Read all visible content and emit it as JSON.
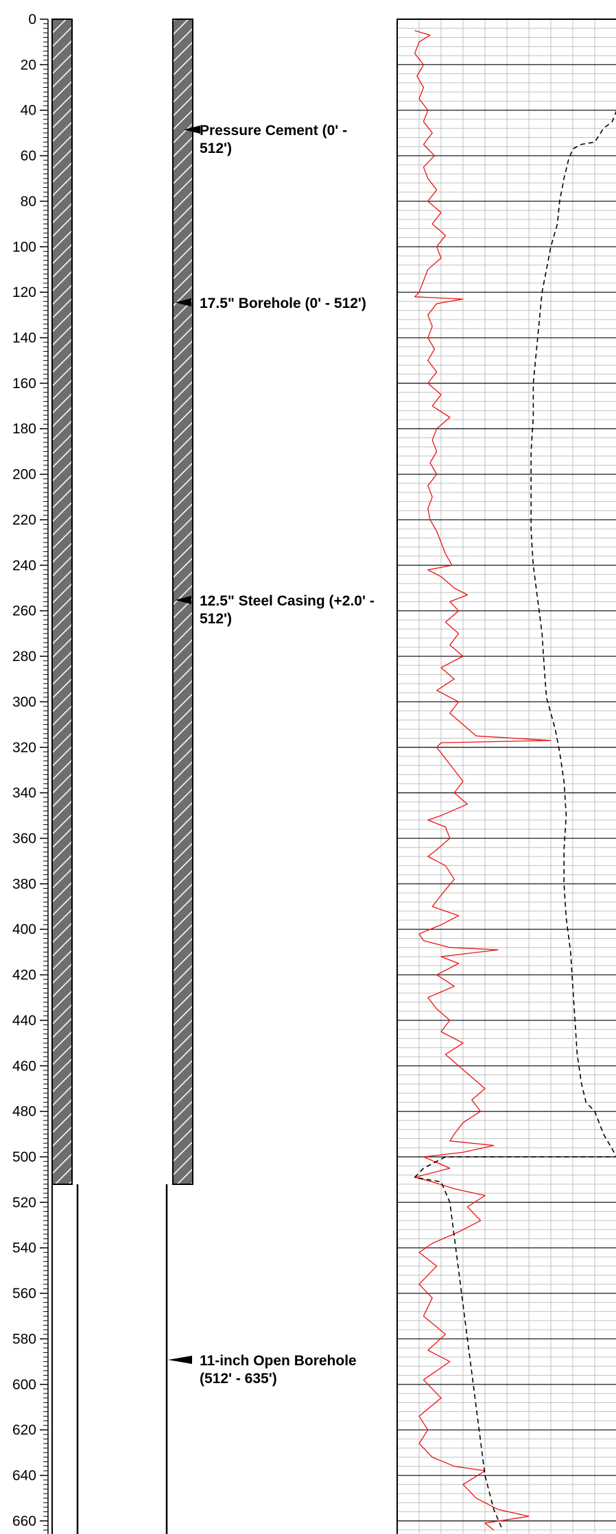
{
  "depth_axis": {
    "min": 0,
    "max": 665,
    "major_step": 20,
    "minor_step": 2,
    "labels": [
      "0",
      "20",
      "40",
      "60",
      "80",
      "100",
      "120",
      "140",
      "160",
      "180",
      "200",
      "220",
      "240",
      "260",
      "280",
      "300",
      "320",
      "340",
      "360",
      "380",
      "400",
      "420",
      "440",
      "460",
      "480",
      "500",
      "520",
      "540",
      "560",
      "580",
      "600",
      "620",
      "640",
      "660"
    ]
  },
  "well_construction": {
    "cased_interval": [
      0,
      512
    ],
    "open_interval": [
      512,
      665
    ],
    "annotations": [
      {
        "depth": 49,
        "lines": [
          "Pressure Cement (0' -",
          "512')"
        ]
      },
      {
        "depth": 125,
        "lines": [
          "17.5\" Borehole (0' - 512')"
        ]
      },
      {
        "depth": 255,
        "lines": [
          "12.5\" Steel Casing (+2.0' -",
          "512')"
        ]
      },
      {
        "depth": 589,
        "lines": [
          "11-inch Open Borehole",
          "(512' - 635')"
        ]
      }
    ]
  },
  "log_track": {
    "major_step": 20,
    "minor_step": 4,
    "vertical_lines": 9
  },
  "colors": {
    "red_curve": "#ee1111",
    "dashed_curve": "#000000",
    "cement": "#6e6e6e",
    "grid_minor": "#c0c0c0",
    "grid_major": "#303030"
  },
  "chart_data": {
    "type": "line",
    "ylim": [
      0,
      665
    ],
    "y_inverted": true,
    "xlim": [
      0,
      100
    ],
    "series": [
      {
        "style": "solid",
        "color": "#ee1111",
        "points": [
          [
            8,
            5
          ],
          [
            15,
            7
          ],
          [
            10,
            10
          ],
          [
            8,
            15
          ],
          [
            12,
            20
          ],
          [
            9,
            25
          ],
          [
            12,
            30
          ],
          [
            10,
            35
          ],
          [
            14,
            40
          ],
          [
            12,
            45
          ],
          [
            16,
            50
          ],
          [
            12,
            55
          ],
          [
            17,
            60
          ],
          [
            12,
            65
          ],
          [
            14,
            70
          ],
          [
            18,
            75
          ],
          [
            14,
            80
          ],
          [
            20,
            85
          ],
          [
            16,
            90
          ],
          [
            22,
            95
          ],
          [
            18,
            100
          ],
          [
            20,
            105
          ],
          [
            14,
            110
          ],
          [
            12,
            115
          ],
          [
            10,
            120
          ],
          [
            8,
            122
          ],
          [
            30,
            123
          ],
          [
            18,
            125
          ],
          [
            14,
            130
          ],
          [
            16,
            135
          ],
          [
            14,
            140
          ],
          [
            17,
            145
          ],
          [
            14,
            150
          ],
          [
            18,
            155
          ],
          [
            14,
            160
          ],
          [
            20,
            165
          ],
          [
            16,
            170
          ],
          [
            24,
            175
          ],
          [
            18,
            180
          ],
          [
            16,
            185
          ],
          [
            18,
            190
          ],
          [
            15,
            195
          ],
          [
            18,
            200
          ],
          [
            14,
            205
          ],
          [
            16,
            210
          ],
          [
            14,
            215
          ],
          [
            15,
            220
          ],
          [
            18,
            225
          ],
          [
            20,
            230
          ],
          [
            22,
            235
          ],
          [
            25,
            240
          ],
          [
            14,
            242
          ],
          [
            20,
            245
          ],
          [
            26,
            250
          ],
          [
            32,
            253
          ],
          [
            24,
            256
          ],
          [
            28,
            260
          ],
          [
            22,
            265
          ],
          [
            28,
            270
          ],
          [
            24,
            275
          ],
          [
            30,
            280
          ],
          [
            20,
            285
          ],
          [
            26,
            290
          ],
          [
            18,
            295
          ],
          [
            28,
            300
          ],
          [
            24,
            305
          ],
          [
            30,
            310
          ],
          [
            36,
            315
          ],
          [
            70,
            317
          ],
          [
            20,
            318
          ],
          [
            18,
            320
          ],
          [
            22,
            325
          ],
          [
            26,
            330
          ],
          [
            30,
            335
          ],
          [
            26,
            340
          ],
          [
            32,
            345
          ],
          [
            20,
            350
          ],
          [
            14,
            352
          ],
          [
            22,
            355
          ],
          [
            24,
            360
          ],
          [
            18,
            365
          ],
          [
            14,
            368
          ],
          [
            22,
            372
          ],
          [
            26,
            378
          ],
          [
            20,
            385
          ],
          [
            16,
            390
          ],
          [
            28,
            394
          ],
          [
            20,
            398
          ],
          [
            10,
            402
          ],
          [
            12,
            405
          ],
          [
            24,
            408
          ],
          [
            46,
            409
          ],
          [
            20,
            412
          ],
          [
            28,
            415
          ],
          [
            18,
            420
          ],
          [
            26,
            425
          ],
          [
            14,
            430
          ],
          [
            18,
            435
          ],
          [
            24,
            440
          ],
          [
            20,
            445
          ],
          [
            30,
            450
          ],
          [
            22,
            455
          ],
          [
            28,
            460
          ],
          [
            34,
            465
          ],
          [
            40,
            470
          ],
          [
            34,
            475
          ],
          [
            38,
            480
          ],
          [
            30,
            485
          ],
          [
            26,
            490
          ],
          [
            24,
            493
          ],
          [
            44,
            495
          ],
          [
            30,
            498
          ],
          [
            12,
            500
          ],
          [
            24,
            505
          ],
          [
            8,
            509
          ],
          [
            16,
            511
          ],
          [
            26,
            514
          ],
          [
            40,
            517
          ],
          [
            32,
            522
          ],
          [
            38,
            528
          ],
          [
            28,
            533
          ],
          [
            16,
            538
          ],
          [
            10,
            542
          ],
          [
            18,
            548
          ],
          [
            10,
            556
          ],
          [
            16,
            562
          ],
          [
            12,
            570
          ],
          [
            22,
            578
          ],
          [
            14,
            585
          ],
          [
            24,
            590
          ],
          [
            12,
            598
          ],
          [
            20,
            606
          ],
          [
            10,
            614
          ],
          [
            14,
            620
          ],
          [
            10,
            626
          ],
          [
            16,
            632
          ],
          [
            26,
            636
          ],
          [
            40,
            638
          ],
          [
            30,
            644
          ],
          [
            36,
            650
          ],
          [
            46,
            655
          ],
          [
            60,
            658
          ],
          [
            40,
            661
          ],
          [
            44,
            664
          ]
        ]
      },
      {
        "style": "dashed",
        "color": "#000000",
        "points": [
          [
            100,
            40
          ],
          [
            98,
            45
          ],
          [
            94,
            48
          ],
          [
            90,
            54
          ],
          [
            84,
            55
          ],
          [
            80,
            57
          ],
          [
            78,
            62
          ],
          [
            76,
            70
          ],
          [
            74,
            80
          ],
          [
            73,
            90
          ],
          [
            70,
            100
          ],
          [
            68,
            110
          ],
          [
            66,
            120
          ],
          [
            65,
            130
          ],
          [
            64,
            140
          ],
          [
            63,
            150
          ],
          [
            62,
            160
          ],
          [
            62,
            175
          ],
          [
            61,
            190
          ],
          [
            61,
            210
          ],
          [
            61,
            225
          ],
          [
            62,
            240
          ],
          [
            64,
            255
          ],
          [
            66,
            270
          ],
          [
            67,
            285
          ],
          [
            68,
            298
          ],
          [
            70,
            305
          ],
          [
            72,
            312
          ],
          [
            74,
            322
          ],
          [
            76,
            335
          ],
          [
            77,
            350
          ],
          [
            76,
            365
          ],
          [
            76,
            380
          ],
          [
            77,
            395
          ],
          [
            79,
            410
          ],
          [
            80,
            425
          ],
          [
            81,
            440
          ],
          [
            82,
            455
          ],
          [
            84,
            468
          ],
          [
            86,
            476
          ],
          [
            90,
            480
          ],
          [
            94,
            490
          ],
          [
            100,
            500
          ],
          [
            74,
            500
          ],
          [
            46,
            500
          ],
          [
            22,
            500
          ],
          [
            12,
            505
          ],
          [
            8,
            509
          ],
          [
            20,
            511
          ],
          [
            24,
            520
          ],
          [
            26,
            535
          ],
          [
            28,
            550
          ],
          [
            30,
            565
          ],
          [
            32,
            580
          ],
          [
            34,
            595
          ],
          [
            36,
            610
          ],
          [
            38,
            625
          ],
          [
            40,
            640
          ],
          [
            44,
            655
          ],
          [
            48,
            664
          ]
        ]
      }
    ]
  }
}
